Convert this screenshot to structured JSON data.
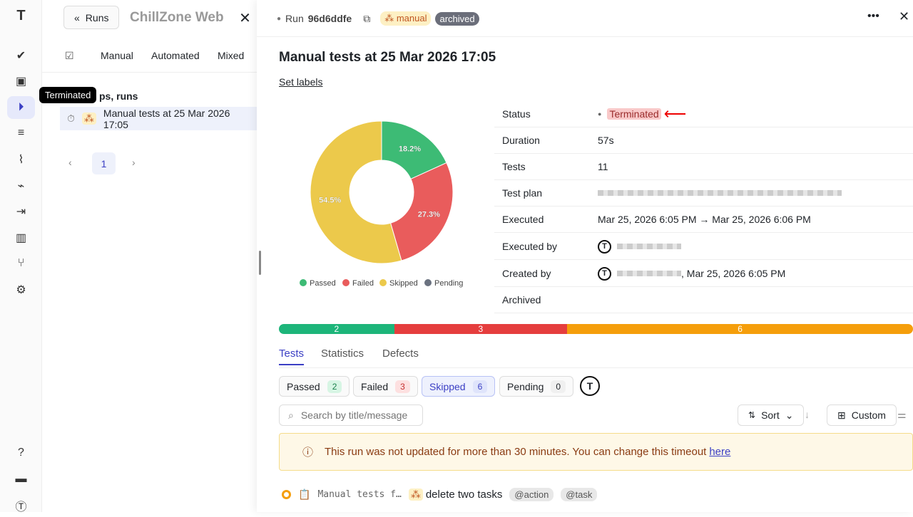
{
  "rail": {
    "items": [
      "logo",
      "check",
      "briefcase-check",
      "play-circle",
      "list-check",
      "steps",
      "pulse",
      "import",
      "chart",
      "branch",
      "gear",
      "help",
      "folder",
      "avatar"
    ]
  },
  "left": {
    "back_label": "Runs",
    "project": "ChillZone Web",
    "tabs": [
      "Manual",
      "Automated",
      "Mixed"
    ],
    "section_title": "ps, runs",
    "tooltip": "Terminated",
    "run_item": "Manual tests at 25 Mar 2026 17:05",
    "page": "1"
  },
  "header": {
    "run_prefix": "Run",
    "run_id": "96d6ddfe",
    "type_badge": "manual",
    "archived_badge": "archived"
  },
  "main": {
    "title": "Manual tests at 25 Mar 2026 17:05",
    "set_labels": "Set labels",
    "details": [
      {
        "label": "Status",
        "value": "Terminated"
      },
      {
        "label": "Duration",
        "value": "57s"
      },
      {
        "label": "Tests",
        "value": "11"
      },
      {
        "label": "Test plan",
        "value": ""
      },
      {
        "label": "Executed",
        "value": "Mar 25, 2026 6:05 PM → Mar 25, 2026 6:06 PM"
      },
      {
        "label": "Executed by",
        "value": ""
      },
      {
        "label": "Created by",
        "value": ", Mar 25, 2026 6:05 PM"
      },
      {
        "label": "Archived",
        "value": ""
      }
    ],
    "tabs": [
      "Tests",
      "Statistics",
      "Defects"
    ],
    "filters": [
      {
        "label": "Passed",
        "count": "2"
      },
      {
        "label": "Failed",
        "count": "3"
      },
      {
        "label": "Skipped",
        "count": "6"
      },
      {
        "label": "Pending",
        "count": "0"
      }
    ],
    "search_placeholder": "Search by title/message",
    "sort_label": "Sort",
    "custom_label": "Custom",
    "warning_text": "This run was not updated for more than 30 minutes. You can change this timeout ",
    "warning_link": "here",
    "test_row": {
      "suite": "Manual tests f…",
      "title": "delete two tasks",
      "tags": [
        "@action",
        "@task"
      ]
    }
  },
  "chart_data": {
    "type": "pie",
    "donut": true,
    "categories": [
      "Passed",
      "Failed",
      "Skipped",
      "Pending"
    ],
    "values": [
      18.2,
      27.3,
      54.5,
      0
    ],
    "labels": [
      "18.2%",
      "27.3%",
      "54.5%",
      ""
    ],
    "colors": [
      "#3dbb75",
      "#e95c5c",
      "#ecc94b",
      "#6b7280"
    ],
    "legend": "bottom"
  },
  "progress": {
    "values": [
      2,
      3,
      6
    ],
    "colors": [
      "#1db57a",
      "#e53e3e",
      "#f59e0b"
    ]
  }
}
